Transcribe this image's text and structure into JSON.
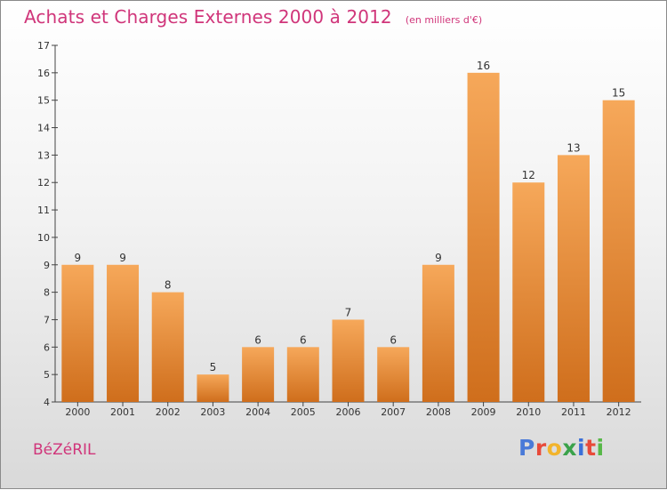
{
  "header": {
    "title": "Achats et Charges Externes 2000 à 2012",
    "subtitle": "(en milliers d'€)"
  },
  "footer": {
    "place": "BéZéRIL",
    "logo": [
      "P",
      "r",
      "o",
      "x",
      "i",
      "t",
      "i"
    ]
  },
  "colors": {
    "title": "#d0357a",
    "bar_top": "#f6a85a",
    "bar_bottom": "#cf6e1c",
    "logo": [
      "#4a7ad8",
      "#e84a3a",
      "#f2b42c",
      "#3aa24a",
      "#3b6fd8",
      "#e84a3a",
      "#57b848"
    ]
  },
  "chart_data": {
    "type": "bar",
    "categories": [
      "2000",
      "2001",
      "2002",
      "2003",
      "2004",
      "2005",
      "2006",
      "2007",
      "2008",
      "2009",
      "2010",
      "2011",
      "2012"
    ],
    "values": [
      9,
      9,
      8,
      5,
      6,
      6,
      7,
      6,
      9,
      16,
      12,
      13,
      15
    ],
    "ylim": [
      4,
      17
    ],
    "yticks": [
      "4",
      "5",
      "6",
      "7",
      "8",
      "9",
      "10",
      "11",
      "12",
      "13",
      "14",
      "15",
      "16",
      "17"
    ],
    "data_labels": [
      "9",
      "9",
      "8",
      "5",
      "6",
      "6",
      "7",
      "6",
      "9",
      "16",
      "12",
      "13",
      "15"
    ],
    "grid": false
  }
}
